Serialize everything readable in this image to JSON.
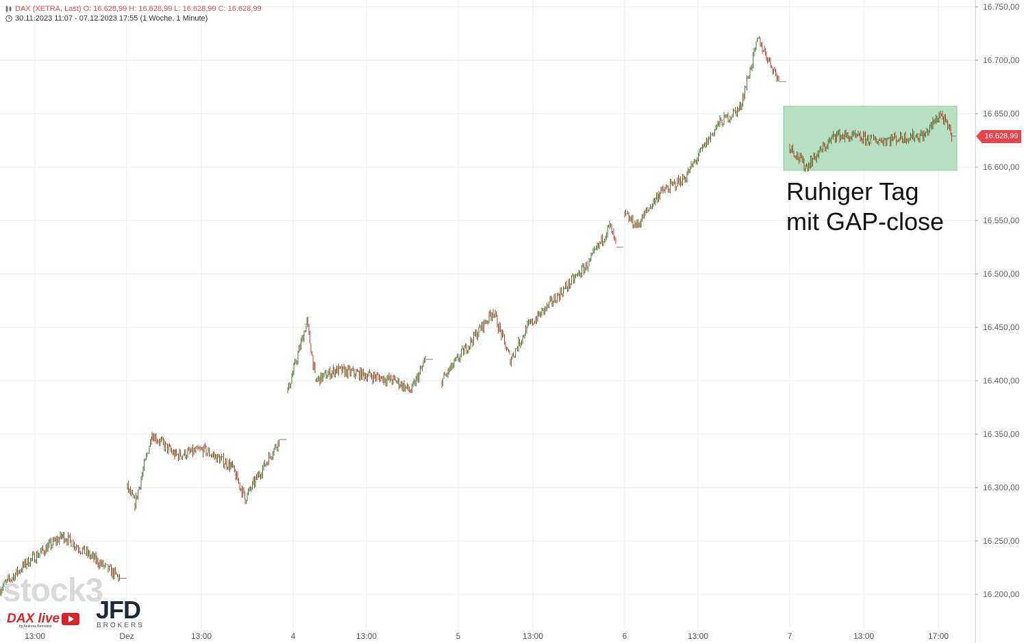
{
  "header": {
    "line1": "DAX (XETRA, Last)  O: 16.628,99  H: 16.628,99  L: 16.628,99  C: 16.628,99",
    "line2": "30.11.2023 11:07 - 07.12.2023 17:55  (1 Woche, 1 Minute)"
  },
  "annotation": {
    "line1": "Ruhiger Tag",
    "line2": "mit GAP-close"
  },
  "price_tag": "16.628,99",
  "branding": {
    "stock3": "stock3",
    "daxlive": "DAX live",
    "daxlive_sub": "by Andreas Bernstein",
    "jfd": "JFD",
    "jfd_sub": "BROKERS"
  },
  "colors": {
    "up": "#3a7d2a",
    "down": "#c0392b",
    "box_fill": "#b7e0c2",
    "box_stroke": "#8fcf9f",
    "price_tag": "#e8454a",
    "grid": "#ececec"
  },
  "chart_data": {
    "type": "line",
    "series": [
      {
        "x": [
          "30.11. 11:07",
          "30.11. 13:00",
          "30.11. 15:00",
          "30.11. 17:30",
          "01.12. 09:00",
          "01.12. 09:15",
          "01.12. 10:00",
          "01.12. 11:00",
          "01.12. 13:00",
          "01.12. 15:00",
          "01.12. 16:30",
          "01.12. 17:30",
          "04.12. 09:00",
          "04.12. 10:30",
          "04.12. 11:00",
          "04.12. 11:30",
          "04.12. 12:30",
          "04.12. 14:30",
          "04.12. 16:00",
          "04.12. 17:30",
          "05.12. 09:00",
          "05.12. 10:00",
          "05.12. 11:30",
          "05.12. 13:00",
          "05.12. 13:30",
          "05.12. 14:30",
          "05.12. 15:30",
          "05.12. 17:30",
          "06.12. 09:00",
          "06.12. 10:00",
          "06.12. 11:30",
          "06.12. 13:30",
          "06.12. 14:30",
          "06.12. 15:30",
          "06.12. 16:30",
          "06.12. 17:30",
          "07.12. 09:00",
          "07.12. 10:00",
          "07.12. 12:00",
          "07.12. 14:00",
          "07.12. 16:30",
          "07.12. 17:00",
          "07.12. 17:55"
        ],
        "y": [
          16205,
          16230,
          16255,
          16215,
          16300,
          16285,
          16350,
          16330,
          16335,
          16320,
          16290,
          16345,
          16390,
          16455,
          16400,
          16410,
          16405,
          16400,
          16390,
          16420,
          16400,
          16465,
          16420,
          16450,
          16470,
          16510,
          16545,
          16525,
          16555,
          16545,
          16575,
          16590,
          16640,
          16655,
          16720,
          16680,
          16620,
          16600,
          16630,
          16625,
          16630,
          16650,
          16628.99
        ]
      }
    ],
    "yticks": [
      "16.200,00",
      "16.250,00",
      "16.300,00",
      "16.350,00",
      "16.400,00",
      "16.450,00",
      "16.500,00",
      "16.550,00",
      "16.600,00",
      "16.650,00",
      "16.700,00",
      "16.750,00"
    ],
    "xticks": [
      "13:00",
      "Dez",
      "13:00",
      "4",
      "13:00",
      "5",
      "13:00",
      "6",
      "13:00",
      "7",
      "13:00",
      "17:00"
    ],
    "ylim": [
      16175,
      16750
    ],
    "grid": true,
    "highlight_box": {
      "y_range": [
        16597,
        16657
      ]
    }
  }
}
